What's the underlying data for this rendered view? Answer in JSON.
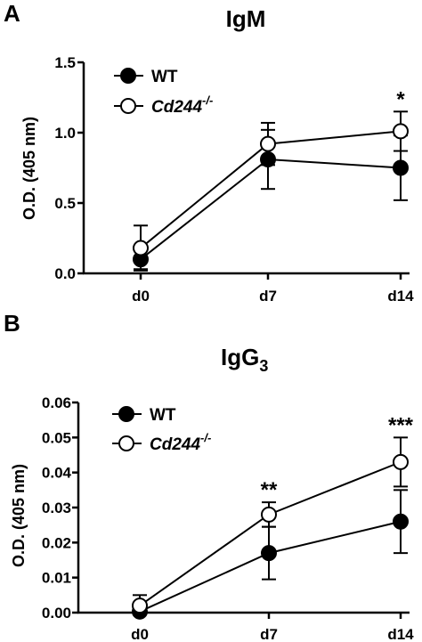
{
  "chart_data": [
    {
      "panel": "A",
      "type": "line",
      "title": "IgM",
      "ylabel": "O.D. (405 nm)",
      "xlabel": "",
      "categories": [
        "d0",
        "d7",
        "d14"
      ],
      "ylim": [
        0,
        1.5
      ],
      "yticks": [
        "0.0",
        "0.5",
        "1.0",
        "1.5"
      ],
      "grid": false,
      "legend_position": "top-left",
      "series": [
        {
          "name": "WT",
          "values": [
            0.1,
            0.81,
            0.75
          ],
          "err": [
            0.07,
            0.21,
            0.23
          ],
          "marker": "filled"
        },
        {
          "name": "Cd244-/-",
          "values": [
            0.18,
            0.92,
            1.01
          ],
          "err": [
            0.16,
            0.15,
            0.14
          ],
          "marker": "open"
        }
      ],
      "annotations": [
        {
          "category": "d14",
          "text": "*"
        }
      ]
    },
    {
      "panel": "B",
      "type": "line",
      "title": "IgG3",
      "ylabel": "O.D. (405 nm)",
      "xlabel": "",
      "categories": [
        "d0",
        "d7",
        "d14"
      ],
      "ylim": [
        0,
        0.06
      ],
      "yticks": [
        "0.00",
        "0.01",
        "0.02",
        "0.03",
        "0.04",
        "0.05",
        "0.06"
      ],
      "grid": false,
      "legend_position": "top-left",
      "series": [
        {
          "name": "WT",
          "values": [
            0.0003,
            0.017,
            0.026
          ],
          "err": [
            0.0005,
            0.0075,
            0.009
          ],
          "marker": "filled"
        },
        {
          "name": "Cd244-/-",
          "values": [
            0.002,
            0.028,
            0.043
          ],
          "err": [
            0.003,
            0.0035,
            0.007
          ],
          "marker": "open"
        }
      ],
      "annotations": [
        {
          "category": "d7",
          "text": "**"
        },
        {
          "category": "d14",
          "text": "***"
        }
      ]
    }
  ],
  "legend_text": {
    "wt": "WT",
    "ko_main": "Cd244",
    "ko_sup": "-/-"
  },
  "title_b_main": "IgG",
  "title_b_sub": "3"
}
